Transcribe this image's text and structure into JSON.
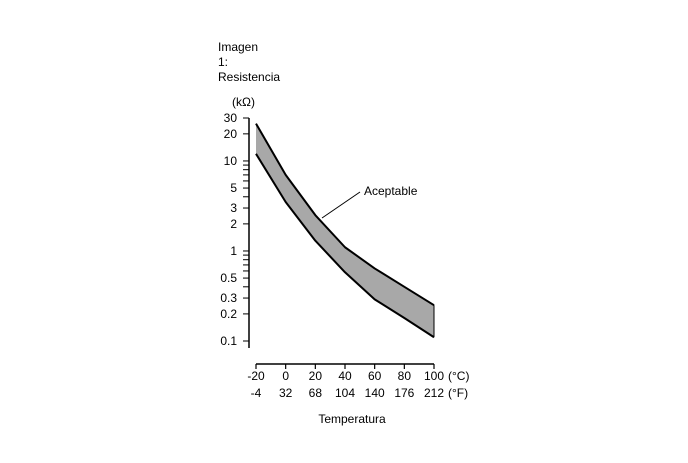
{
  "chart_data": {
    "type": "area",
    "title_lines": [
      "Imagen",
      "1:",
      "Resistencia"
    ],
    "y_unit": "(kΩ)",
    "xlabel": "Temperatura",
    "x_unit_c": "(°C)",
    "x_unit_f": "(°F)",
    "y_scale": "log",
    "ylim": [
      0.1,
      30
    ],
    "xlim": [
      -20,
      100
    ],
    "y_ticks": [
      "30",
      "20",
      "10",
      "5",
      "3",
      "2",
      "1",
      "0.5",
      "0.3",
      "0.2",
      "0.1"
    ],
    "x_ticks_c": [
      "-20",
      "0",
      "20",
      "40",
      "60",
      "80",
      "100"
    ],
    "x_ticks_f": [
      "-4",
      "32",
      "68",
      "104",
      "140",
      "176",
      "212"
    ],
    "annotation": "Aceptable",
    "band": {
      "x": [
        -20,
        0,
        20,
        40,
        60,
        80,
        100
      ],
      "upper": [
        26,
        7,
        2.5,
        1.1,
        0.64,
        0.4,
        0.25
      ],
      "lower": [
        12,
        3.5,
        1.3,
        0.58,
        0.29,
        0.18,
        0.11
      ]
    },
    "colors": {
      "band_fill": "#a8a8a8",
      "line": "#000000"
    }
  }
}
